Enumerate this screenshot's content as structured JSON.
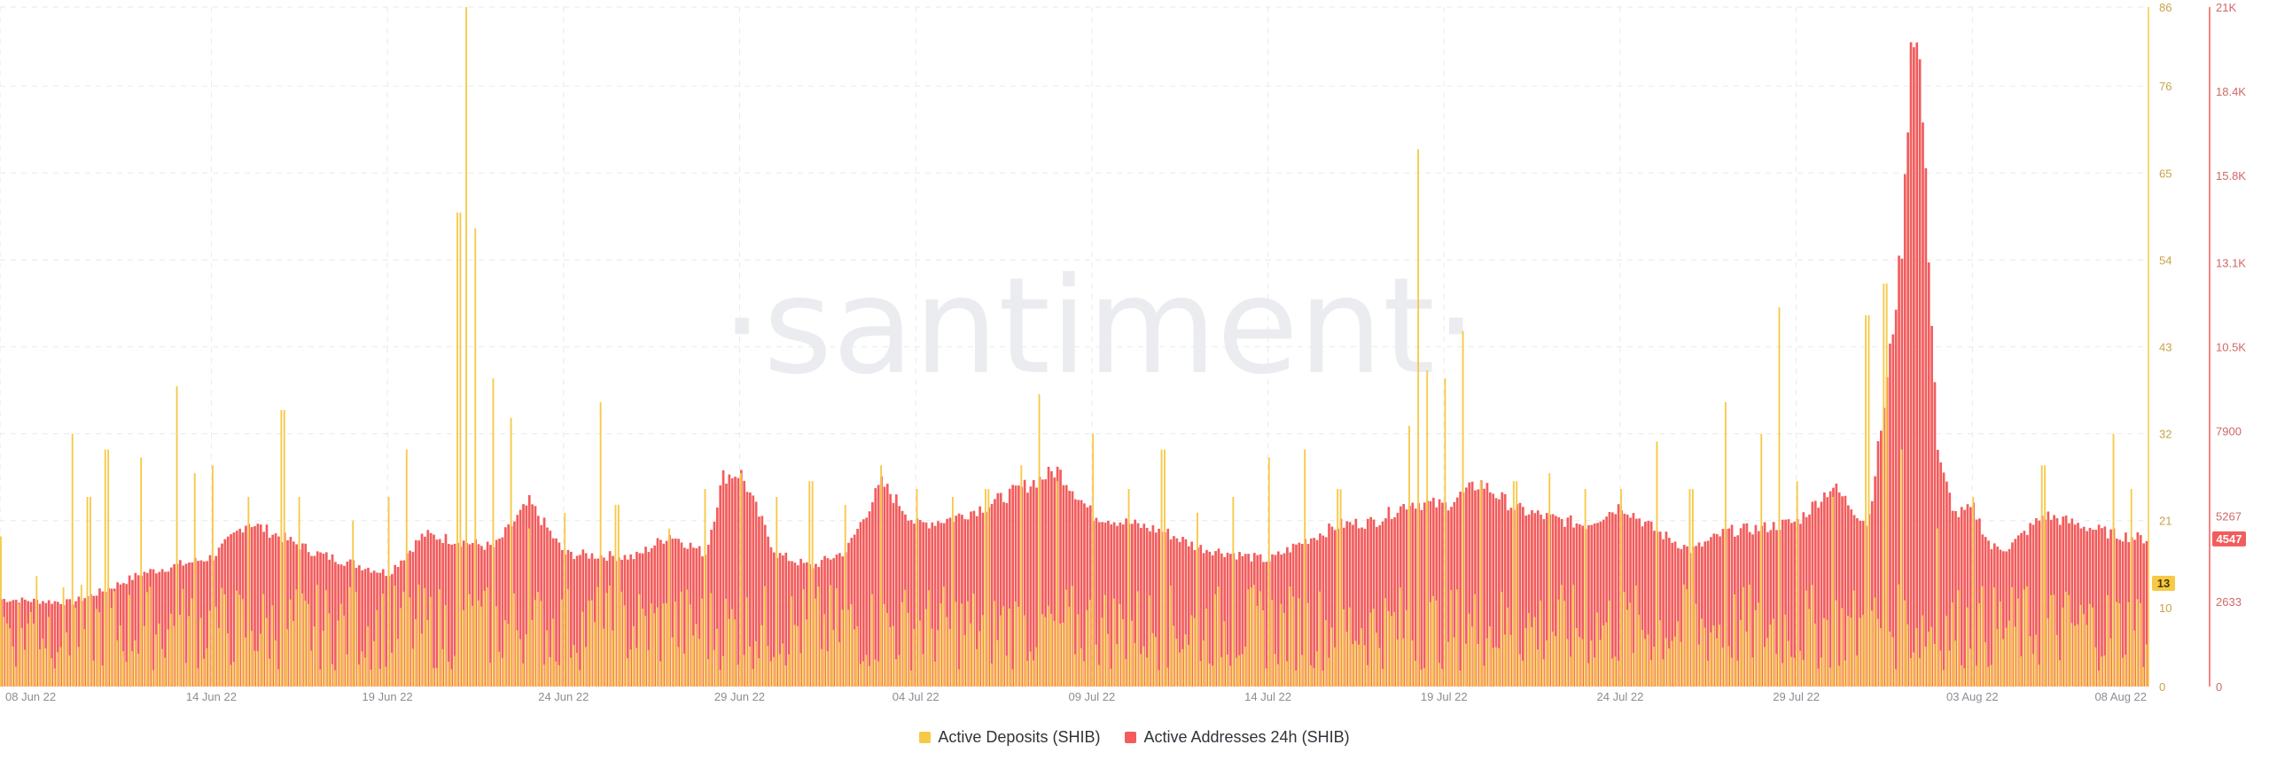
{
  "watermark": "·santiment·",
  "legend": [
    {
      "label": "Active Deposits (SHIB)",
      "color": "#f7c947"
    },
    {
      "label": "Active Addresses 24h (SHIB)",
      "color": "#f25c5c"
    }
  ],
  "chart_data": {
    "type": "bar",
    "x_range": [
      "2022-06-08",
      "2022-08-08"
    ],
    "x_tick_labels": [
      "08 Jun 22",
      "14 Jun 22",
      "19 Jun 22",
      "24 Jun 22",
      "29 Jun 22",
      "04 Jul 22",
      "09 Jul 22",
      "14 Jul 22",
      "19 Jul 22",
      "24 Jul 22",
      "29 Jul 22",
      "03 Aug 22",
      "08 Aug 22"
    ],
    "y_left": {
      "ylim": [
        0,
        86
      ],
      "ticks": [
        "0",
        "10",
        "21",
        "32",
        "43",
        "54",
        "65",
        "76",
        "86"
      ],
      "color": "#f7c947"
    },
    "y_right": {
      "ylim": [
        0,
        21000
      ],
      "ticks": [
        "0",
        "2633",
        "5267",
        "7900",
        "10.5K",
        "13.1K",
        "15.8K",
        "18.4K",
        "21K"
      ],
      "color": "#f25c5c"
    },
    "grid": true,
    "last_values": {
      "active_deposits": "13",
      "active_addresses": "4547"
    },
    "series": [
      {
        "name": "Active Addresses 24h (SHIB)",
        "axis": "right",
        "color": "#f25c5c",
        "keypoints": [
          [
            "2022-06-08",
            2700
          ],
          [
            "2022-06-10",
            2600
          ],
          [
            "2022-06-11",
            3000
          ],
          [
            "2022-06-12",
            3500
          ],
          [
            "2022-06-14",
            4000
          ],
          [
            "2022-06-15",
            5100
          ],
          [
            "2022-06-16",
            4600
          ],
          [
            "2022-06-17",
            4100
          ],
          [
            "2022-06-19",
            3500
          ],
          [
            "2022-06-20",
            4700
          ],
          [
            "2022-06-22",
            4300
          ],
          [
            "2022-06-23",
            5700
          ],
          [
            "2022-06-24",
            4100
          ],
          [
            "2022-06-26",
            4000
          ],
          [
            "2022-06-27",
            4700
          ],
          [
            "2022-06-28",
            4100
          ],
          [
            "2022-06-28T12:00",
            6500
          ],
          [
            "2022-06-29",
            6600
          ],
          [
            "2022-06-30",
            4100
          ],
          [
            "2022-07-01",
            3700
          ],
          [
            "2022-07-02",
            4200
          ],
          [
            "2022-07-03",
            6300
          ],
          [
            "2022-07-04",
            5000
          ],
          [
            "2022-07-05",
            5200
          ],
          [
            "2022-07-06",
            5600
          ],
          [
            "2022-07-08",
            6700
          ],
          [
            "2022-07-09",
            5300
          ],
          [
            "2022-07-11",
            4800
          ],
          [
            "2022-07-12",
            4300
          ],
          [
            "2022-07-14",
            3900
          ],
          [
            "2022-07-15",
            4500
          ],
          [
            "2022-07-16",
            5000
          ],
          [
            "2022-07-17",
            5100
          ],
          [
            "2022-07-18",
            5700
          ],
          [
            "2022-07-19",
            5600
          ],
          [
            "2022-07-20",
            6300
          ],
          [
            "2022-07-21",
            5500
          ],
          [
            "2022-07-22",
            5200
          ],
          [
            "2022-07-23",
            5000
          ],
          [
            "2022-07-24",
            5600
          ],
          [
            "2022-07-25",
            4800
          ],
          [
            "2022-07-26",
            4200
          ],
          [
            "2022-07-27",
            4800
          ],
          [
            "2022-07-28",
            4900
          ],
          [
            "2022-07-29",
            5100
          ],
          [
            "2022-07-30",
            6200
          ],
          [
            "2022-07-31",
            5000
          ],
          [
            "2022-07-31T12:00",
            9000
          ],
          [
            "2022-08-01",
            14000
          ],
          [
            "2022-08-01T06:00",
            20800
          ],
          [
            "2022-08-01T12:00",
            19000
          ],
          [
            "2022-08-02",
            7000
          ],
          [
            "2022-08-02T12:00",
            5300
          ],
          [
            "2022-08-03",
            5500
          ],
          [
            "2022-08-03T12:00",
            4300
          ],
          [
            "2022-08-04",
            4300
          ],
          [
            "2022-08-05",
            5300
          ],
          [
            "2022-08-06",
            5000
          ],
          [
            "2022-08-07",
            4700
          ],
          [
            "2022-08-08",
            4547
          ]
        ]
      },
      {
        "name": "Active Deposits (SHIB)",
        "axis": "left",
        "color": "#f7c947",
        "baseline_range": [
          2,
          13
        ],
        "spikes": [
          [
            "2022-06-08",
            19
          ],
          [
            "2022-06-09",
            14
          ],
          [
            "2022-06-10",
            32
          ],
          [
            "2022-06-10T12:00",
            24
          ],
          [
            "2022-06-11",
            30
          ],
          [
            "2022-06-12",
            29
          ],
          [
            "2022-06-13",
            38
          ],
          [
            "2022-06-13T12:00",
            27
          ],
          [
            "2022-06-14",
            28
          ],
          [
            "2022-06-15",
            24
          ],
          [
            "2022-06-16",
            35
          ],
          [
            "2022-06-16T12:00",
            24
          ],
          [
            "2022-06-18",
            21
          ],
          [
            "2022-06-19",
            24
          ],
          [
            "2022-06-19T12:00",
            30
          ],
          [
            "2022-06-21",
            60
          ],
          [
            "2022-06-21T06:00",
            86
          ],
          [
            "2022-06-21T12:00",
            58
          ],
          [
            "2022-06-22",
            39
          ],
          [
            "2022-06-22T12:00",
            34
          ],
          [
            "2022-06-23",
            20
          ],
          [
            "2022-06-24",
            22
          ],
          [
            "2022-06-25",
            36
          ],
          [
            "2022-06-25T12:00",
            23
          ],
          [
            "2022-06-27",
            20
          ],
          [
            "2022-06-28",
            25
          ],
          [
            "2022-06-29",
            27
          ],
          [
            "2022-06-30",
            24
          ],
          [
            "2022-07-01",
            26
          ],
          [
            "2022-07-02",
            23
          ],
          [
            "2022-07-03",
            28
          ],
          [
            "2022-07-04",
            25
          ],
          [
            "2022-07-05",
            24
          ],
          [
            "2022-07-06",
            25
          ],
          [
            "2022-07-07",
            28
          ],
          [
            "2022-07-07T12:00",
            37
          ],
          [
            "2022-07-08",
            26
          ],
          [
            "2022-07-09",
            32
          ],
          [
            "2022-07-10",
            25
          ],
          [
            "2022-07-11",
            30
          ],
          [
            "2022-07-12",
            22
          ],
          [
            "2022-07-13",
            24
          ],
          [
            "2022-07-14",
            29
          ],
          [
            "2022-07-15",
            30
          ],
          [
            "2022-07-16",
            25
          ],
          [
            "2022-07-18",
            33
          ],
          [
            "2022-07-18T06:00",
            68
          ],
          [
            "2022-07-18T12:00",
            40
          ],
          [
            "2022-07-19",
            39
          ],
          [
            "2022-07-19T12:00",
            45
          ],
          [
            "2022-07-20",
            26
          ],
          [
            "2022-07-21",
            26
          ],
          [
            "2022-07-22",
            27
          ],
          [
            "2022-07-23",
            25
          ],
          [
            "2022-07-24",
            25
          ],
          [
            "2022-07-25",
            31
          ],
          [
            "2022-07-26",
            25
          ],
          [
            "2022-07-27",
            36
          ],
          [
            "2022-07-28",
            32
          ],
          [
            "2022-07-28T12:00",
            48
          ],
          [
            "2022-07-29",
            26
          ],
          [
            "2022-07-30",
            24
          ],
          [
            "2022-07-31",
            47
          ],
          [
            "2022-07-31T12:00",
            51
          ],
          [
            "2022-08-01",
            30
          ],
          [
            "2022-08-02",
            20
          ],
          [
            "2022-08-03",
            24
          ],
          [
            "2022-08-05",
            28
          ],
          [
            "2022-08-07",
            32
          ],
          [
            "2022-08-07T12:00",
            25
          ],
          [
            "2022-08-08",
            13
          ]
        ]
      }
    ]
  }
}
